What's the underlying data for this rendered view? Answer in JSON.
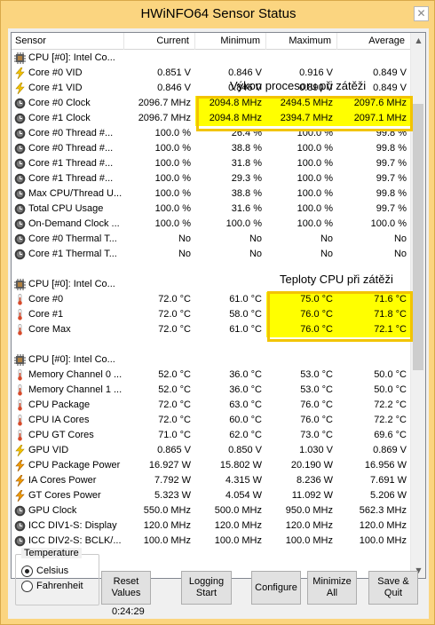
{
  "window": {
    "title": "HWiNFO64 Sensor Status",
    "close_glyph": "✕"
  },
  "columns": [
    "Sensor",
    "Current",
    "Minimum",
    "Maximum",
    "Average"
  ],
  "rows": [
    {
      "icon": "cpu-icon",
      "name": "CPU [#0]: Intel Co...",
      "cur": "",
      "min": "",
      "max": "",
      "avg": "",
      "hl": []
    },
    {
      "icon": "voltage-icon",
      "name": "Core #0 VID",
      "cur": "0.851 V",
      "min": "0.846 V",
      "max": "0.916 V",
      "avg": "0.849 V",
      "hl": []
    },
    {
      "icon": "voltage-icon",
      "name": "Core #1 VID",
      "cur": "0.846 V",
      "min": "0.846 V",
      "max": "0.890 V",
      "avg": "0.849 V",
      "hl": []
    },
    {
      "icon": "clock-icon",
      "name": "Core #0 Clock",
      "cur": "2096.7 MHz",
      "min": "2094.8 MHz",
      "max": "2494.5 MHz",
      "avg": "2097.6 MHz",
      "hl": [
        2,
        3,
        4
      ]
    },
    {
      "icon": "clock-icon",
      "name": "Core #1 Clock",
      "cur": "2096.7 MHz",
      "min": "2094.8 MHz",
      "max": "2394.7 MHz",
      "avg": "2097.1 MHz",
      "hl": [
        2,
        3,
        4
      ]
    },
    {
      "icon": "clock-icon",
      "name": "Core #0 Thread #...",
      "cur": "100.0 %",
      "min": "26.4 %",
      "max": "100.0 %",
      "avg": "99.8 %",
      "hl": []
    },
    {
      "icon": "clock-icon",
      "name": "Core #0 Thread #...",
      "cur": "100.0 %",
      "min": "38.8 %",
      "max": "100.0 %",
      "avg": "99.8 %",
      "hl": []
    },
    {
      "icon": "clock-icon",
      "name": "Core #1 Thread #...",
      "cur": "100.0 %",
      "min": "31.8 %",
      "max": "100.0 %",
      "avg": "99.7 %",
      "hl": []
    },
    {
      "icon": "clock-icon",
      "name": "Core #1 Thread #...",
      "cur": "100.0 %",
      "min": "29.3 %",
      "max": "100.0 %",
      "avg": "99.7 %",
      "hl": []
    },
    {
      "icon": "clock-icon",
      "name": "Max CPU/Thread U...",
      "cur": "100.0 %",
      "min": "38.8 %",
      "max": "100.0 %",
      "avg": "99.8 %",
      "hl": []
    },
    {
      "icon": "clock-icon",
      "name": "Total CPU Usage",
      "cur": "100.0 %",
      "min": "31.6 %",
      "max": "100.0 %",
      "avg": "99.7 %",
      "hl": []
    },
    {
      "icon": "clock-icon",
      "name": "On-Demand Clock ...",
      "cur": "100.0 %",
      "min": "100.0 %",
      "max": "100.0 %",
      "avg": "100.0 %",
      "hl": []
    },
    {
      "icon": "clock-icon",
      "name": "Core #0 Thermal T...",
      "cur": "No",
      "min": "No",
      "max": "No",
      "avg": "No",
      "hl": []
    },
    {
      "icon": "clock-icon",
      "name": "Core #1 Thermal T...",
      "cur": "No",
      "min": "No",
      "max": "No",
      "avg": "No",
      "hl": []
    },
    {
      "icon": "",
      "name": "",
      "cur": "",
      "min": "",
      "max": "",
      "avg": "",
      "hl": []
    },
    {
      "icon": "cpu-icon",
      "name": "CPU [#0]: Intel Co...",
      "cur": "",
      "min": "",
      "max": "",
      "avg": "",
      "hl": []
    },
    {
      "icon": "thermometer-icon",
      "name": "Core #0",
      "cur": "72.0 °C",
      "min": "61.0 °C",
      "max": "75.0 °C",
      "avg": "71.6 °C",
      "hl": [
        3,
        4
      ]
    },
    {
      "icon": "thermometer-icon",
      "name": "Core #1",
      "cur": "72.0 °C",
      "min": "58.0 °C",
      "max": "76.0 °C",
      "avg": "71.8 °C",
      "hl": [
        3,
        4
      ]
    },
    {
      "icon": "thermometer-icon",
      "name": "Core Max",
      "cur": "72.0 °C",
      "min": "61.0 °C",
      "max": "76.0 °C",
      "avg": "72.1 °C",
      "hl": [
        3,
        4
      ]
    },
    {
      "icon": "",
      "name": "",
      "cur": "",
      "min": "",
      "max": "",
      "avg": "",
      "hl": []
    },
    {
      "icon": "cpu-icon",
      "name": "CPU [#0]: Intel Co...",
      "cur": "",
      "min": "",
      "max": "",
      "avg": "",
      "hl": []
    },
    {
      "icon": "thermometer-icon",
      "name": "Memory Channel 0 ...",
      "cur": "52.0 °C",
      "min": "36.0 °C",
      "max": "53.0 °C",
      "avg": "50.0 °C",
      "hl": []
    },
    {
      "icon": "thermometer-icon",
      "name": "Memory Channel 1 ...",
      "cur": "52.0 °C",
      "min": "36.0 °C",
      "max": "53.0 °C",
      "avg": "50.0 °C",
      "hl": []
    },
    {
      "icon": "thermometer-icon",
      "name": "CPU Package",
      "cur": "72.0 °C",
      "min": "63.0 °C",
      "max": "76.0 °C",
      "avg": "72.2 °C",
      "hl": []
    },
    {
      "icon": "thermometer-icon",
      "name": "CPU IA Cores",
      "cur": "72.0 °C",
      "min": "60.0 °C",
      "max": "76.0 °C",
      "avg": "72.2 °C",
      "hl": []
    },
    {
      "icon": "thermometer-icon",
      "name": "CPU GT Cores",
      "cur": "71.0 °C",
      "min": "62.0 °C",
      "max": "73.0 °C",
      "avg": "69.6 °C",
      "hl": []
    },
    {
      "icon": "voltage-icon",
      "name": "GPU VID",
      "cur": "0.865 V",
      "min": "0.850 V",
      "max": "1.030 V",
      "avg": "0.869 V",
      "hl": []
    },
    {
      "icon": "power-icon",
      "name": "CPU Package Power",
      "cur": "16.927 W",
      "min": "15.802 W",
      "max": "20.190 W",
      "avg": "16.956 W",
      "hl": []
    },
    {
      "icon": "power-icon",
      "name": "IA Cores Power",
      "cur": "7.792 W",
      "min": "4.315 W",
      "max": "8.236 W",
      "avg": "7.691 W",
      "hl": []
    },
    {
      "icon": "power-icon",
      "name": "GT Cores Power",
      "cur": "5.323 W",
      "min": "4.054 W",
      "max": "11.092 W",
      "avg": "5.206 W",
      "hl": []
    },
    {
      "icon": "clock-icon",
      "name": "GPU Clock",
      "cur": "550.0 MHz",
      "min": "500.0 MHz",
      "max": "950.0 MHz",
      "avg": "562.3 MHz",
      "hl": []
    },
    {
      "icon": "clock-icon",
      "name": "ICC DIV1-S: Display",
      "cur": "120.0 MHz",
      "min": "120.0 MHz",
      "max": "120.0 MHz",
      "avg": "120.0 MHz",
      "hl": []
    },
    {
      "icon": "clock-icon",
      "name": "ICC DIV2-S: BCLK/...",
      "cur": "100.0 MHz",
      "min": "100.0 MHz",
      "max": "100.0 MHz",
      "avg": "100.0 MHz",
      "hl": []
    }
  ],
  "callouts": {
    "cpu_load": "Výkon procesoru při zátěži",
    "cpu_temp": "Teploty CPU při zátěži"
  },
  "temperature": {
    "title": "Temperature",
    "celsius": "Celsius",
    "fahrenheit": "Fahrenheit",
    "selected": "Celsius"
  },
  "buttons": {
    "reset": "Reset Values",
    "logging": "Logging Start",
    "configure": "Configure",
    "minimize": "Minimize All",
    "save": "Save & Quit"
  },
  "timer": "0:24:29",
  "colors": {
    "highlight": "#ffff00",
    "highlight_border": "#f2c400",
    "frame": "#fbd580"
  }
}
